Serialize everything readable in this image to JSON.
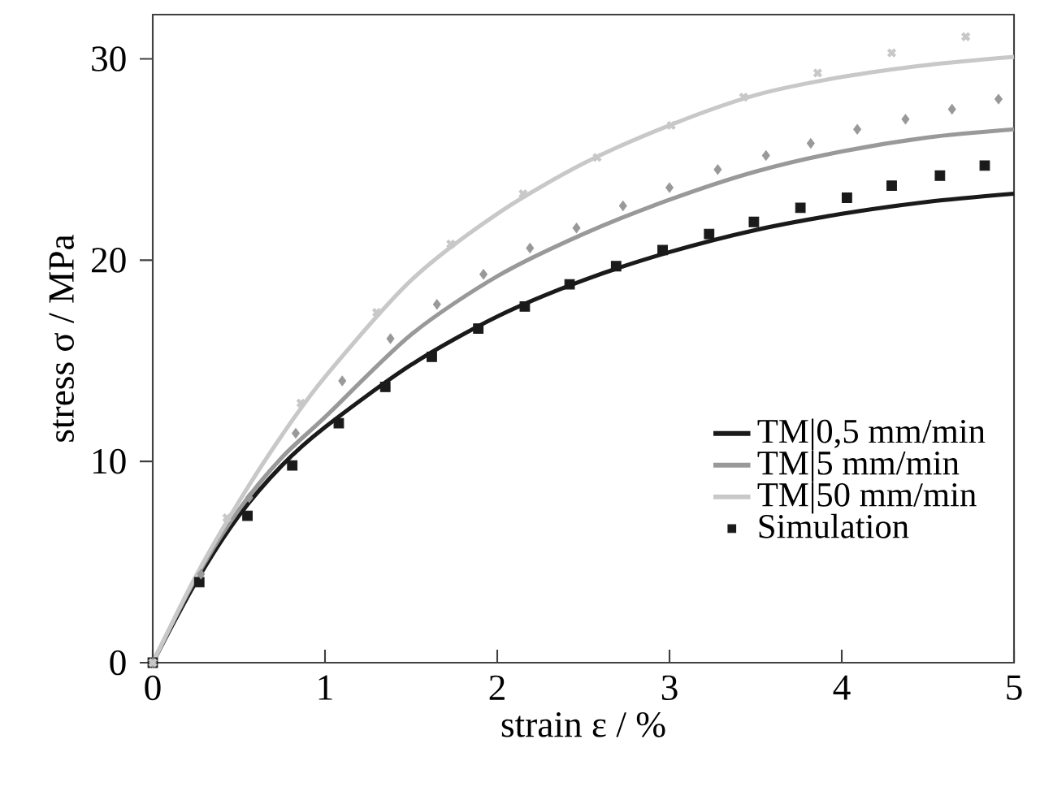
{
  "chart_data": {
    "type": "line",
    "xlabel": "strain ε / %",
    "ylabel": "stress σ / MPa",
    "xlim": [
      0,
      5
    ],
    "ylim": [
      0,
      32.2
    ],
    "xticks": [
      0,
      1,
      2,
      3,
      4,
      5
    ],
    "yticks": [
      0,
      10,
      20,
      30
    ],
    "legend": "bottom right",
    "series": [
      {
        "name": "TM|0,5 mm/min",
        "color": "#1a1a1a",
        "marker": "none",
        "x": [
          0,
          0.25,
          0.5,
          0.75,
          1,
          1.5,
          2,
          2.5,
          3,
          3.5,
          4,
          4.5,
          5
        ],
        "values": [
          0,
          4.0,
          7.3,
          9.8,
          11.7,
          14.8,
          17.2,
          19.0,
          20.4,
          21.5,
          22.3,
          22.9,
          23.3
        ]
      },
      {
        "name": "TM|5 mm/min",
        "color": "#999999",
        "marker": "none",
        "x": [
          0,
          0.25,
          0.5,
          0.75,
          1,
          1.5,
          2,
          2.5,
          3,
          3.5,
          4,
          4.5,
          5
        ],
        "values": [
          0,
          4.2,
          7.6,
          10.2,
          12.2,
          16.3,
          19.2,
          21.3,
          23.0,
          24.4,
          25.4,
          26.1,
          26.5
        ]
      },
      {
        "name": "TM|50 mm/min",
        "color": "#c8c8c8",
        "marker": "none",
        "x": [
          0,
          0.25,
          0.5,
          0.75,
          1,
          1.5,
          2,
          2.5,
          3,
          3.5,
          4,
          4.5,
          5
        ],
        "values": [
          0,
          4.3,
          8.0,
          11.3,
          14.2,
          19.0,
          22.3,
          24.8,
          26.7,
          28.2,
          29.1,
          29.7,
          30.1
        ]
      },
      {
        "name": "Simulation",
        "type": "scatter",
        "color": "#1a1a1a",
        "marker": "square",
        "x": [
          0,
          0.27,
          0.55,
          0.81,
          1.08,
          1.35,
          1.62,
          1.89,
          2.16,
          2.42,
          2.69,
          2.96,
          3.23,
          3.49,
          3.76,
          4.03,
          4.29,
          4.57,
          4.83
        ],
        "values": [
          0,
          4.0,
          7.3,
          9.8,
          11.9,
          13.7,
          15.2,
          16.6,
          17.7,
          18.8,
          19.7,
          20.5,
          21.3,
          21.9,
          22.6,
          23.1,
          23.7,
          24.2,
          24.7
        ]
      },
      {
        "type": "scatter",
        "color": "#999999",
        "marker": "diamond",
        "x": [
          0,
          0.28,
          0.56,
          0.83,
          1.1,
          1.38,
          1.65,
          1.92,
          2.19,
          2.46,
          2.73,
          3.0,
          3.28,
          3.56,
          3.82,
          4.09,
          4.37,
          4.64,
          4.91
        ],
        "values": [
          0,
          4.4,
          8.2,
          11.4,
          14.0,
          16.1,
          17.8,
          19.3,
          20.6,
          21.6,
          22.7,
          23.6,
          24.5,
          25.2,
          25.8,
          26.5,
          27.0,
          27.5,
          28.0
        ]
      },
      {
        "type": "scatter",
        "color": "#c8c8c8",
        "marker": "cross",
        "x": [
          0,
          0.43,
          0.86,
          1.3,
          1.73,
          2.15,
          2.58,
          3.01,
          3.43,
          3.86,
          4.29,
          4.72
        ],
        "values": [
          0,
          7.2,
          12.9,
          17.4,
          20.8,
          23.3,
          25.1,
          26.7,
          28.1,
          29.3,
          30.3,
          31.1
        ]
      }
    ]
  }
}
